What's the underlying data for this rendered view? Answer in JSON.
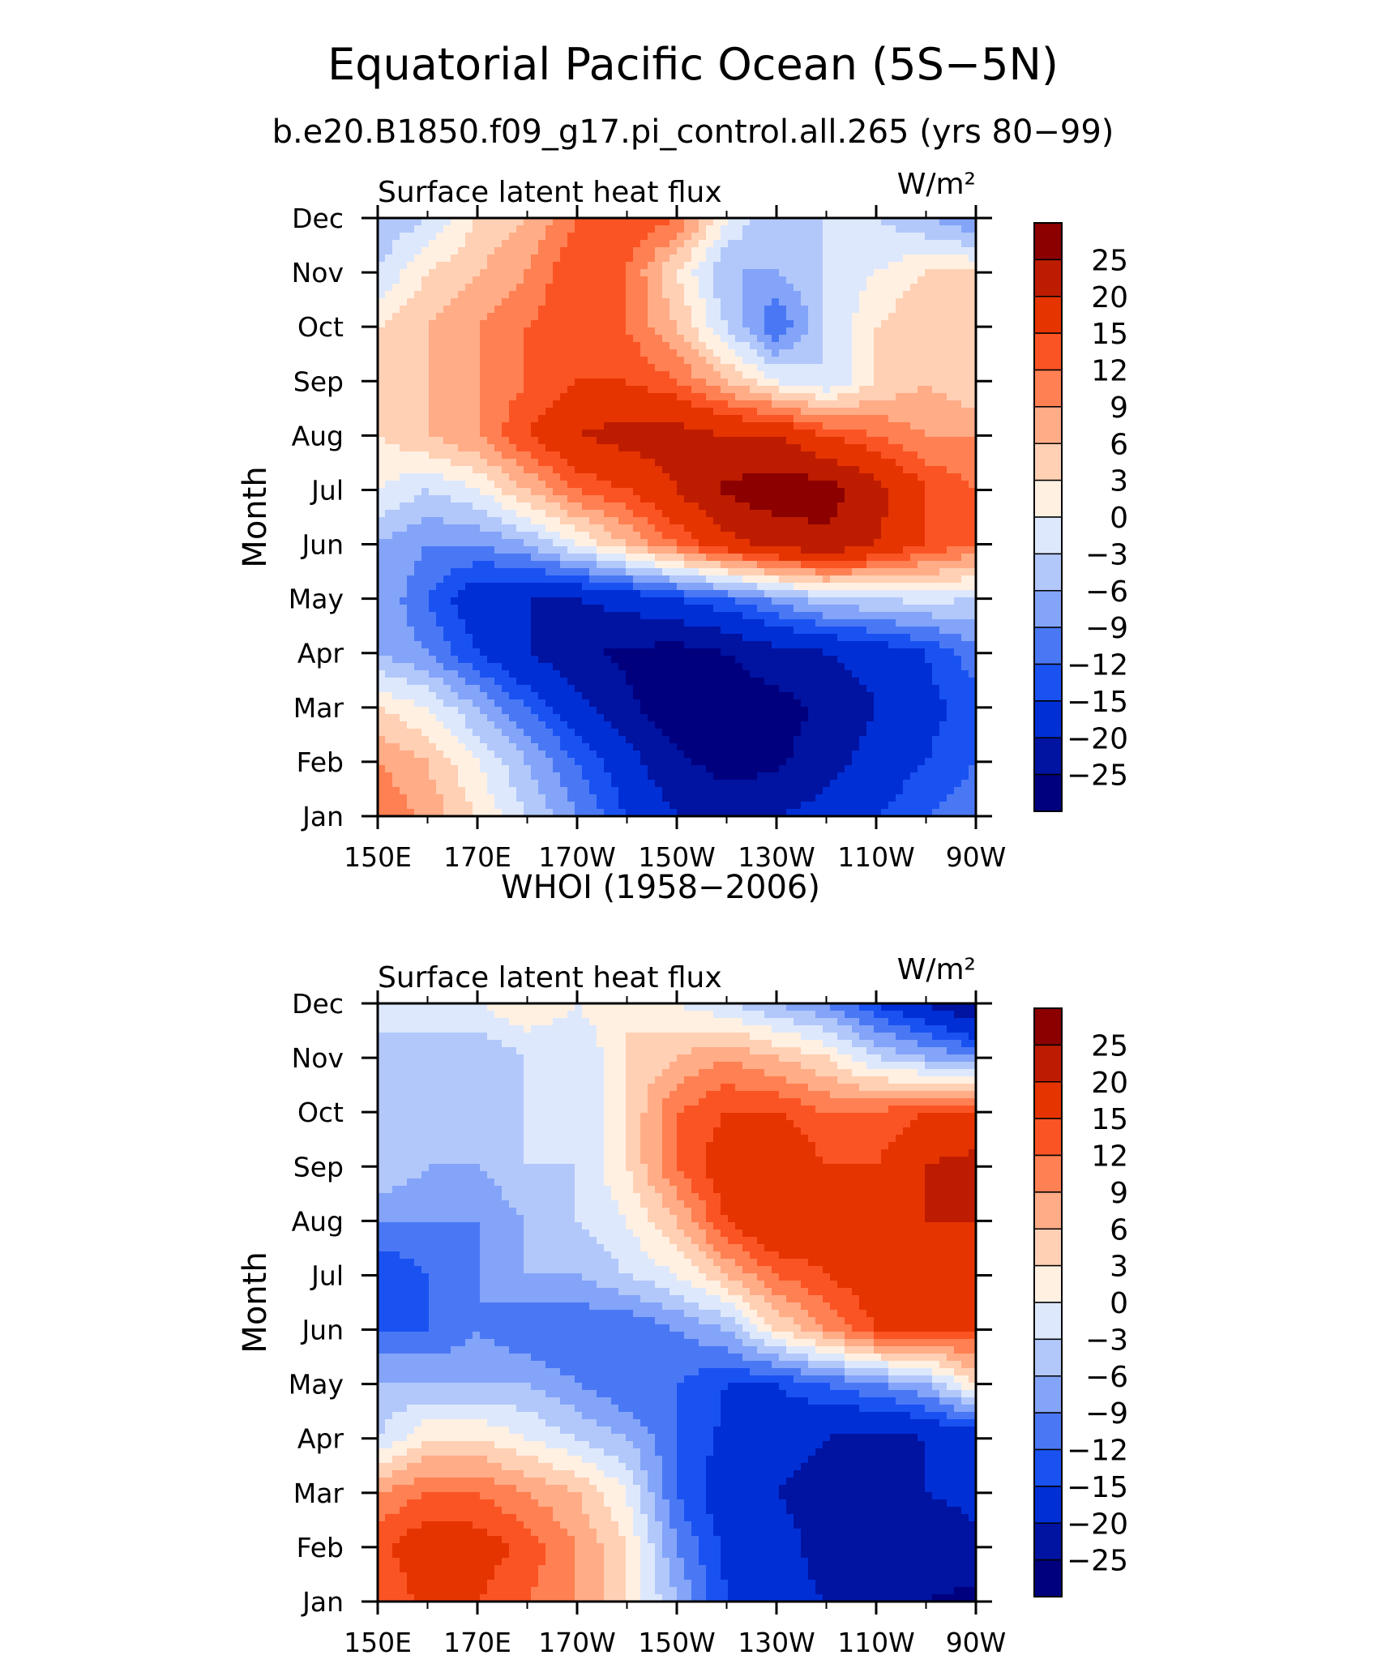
{
  "title": "Equatorial Pacific Ocean (5S−5N)",
  "subtitle": "b.e20.B1850.f09_g17.pi_control.all.265 (yrs 80−99)",
  "chart_data": [
    {
      "type": "heatmap",
      "title": "",
      "left_string": "Surface latent heat flux",
      "right_string": "W/m²",
      "ylabel": "Month",
      "x_ticks": [
        "150E",
        "170E",
        "170W",
        "150W",
        "130W",
        "110W",
        "90W"
      ],
      "y_ticks": [
        "Jan",
        "Feb",
        "Mar",
        "Apr",
        "May",
        "Jun",
        "Jul",
        "Aug",
        "Sep",
        "Oct",
        "Nov",
        "Dec"
      ],
      "x_lon": [
        150,
        160,
        170,
        180,
        190,
        200,
        210,
        220,
        230,
        240,
        250,
        260,
        270
      ],
      "y_month": [
        1,
        2,
        3,
        4,
        5,
        6,
        7,
        8,
        9,
        10,
        11,
        12
      ],
      "values": [
        [
          12,
          8,
          3,
          -3,
          -9,
          -15,
          -20,
          -22,
          -20,
          -18,
          -15,
          -12,
          -10
        ],
        [
          9,
          6,
          0,
          -6,
          -12,
          -18,
          -24,
          -27,
          -26,
          -22,
          -18,
          -15,
          -12
        ],
        [
          3,
          0,
          -6,
          -12,
          -18,
          -24,
          -28,
          -28,
          -27,
          -24,
          -20,
          -16,
          -14
        ],
        [
          -6,
          -9,
          -15,
          -20,
          -24,
          -26,
          -27,
          -25,
          -22,
          -20,
          -18,
          -15,
          -10
        ],
        [
          -6,
          -12,
          -18,
          -20,
          -20,
          -18,
          -15,
          -12,
          -8,
          -4,
          -3,
          -2,
          -3
        ],
        [
          -6,
          -9,
          -9,
          -6,
          0,
          6,
          12,
          18,
          22,
          24,
          20,
          15,
          12
        ],
        [
          0,
          -3,
          0,
          6,
          12,
          15,
          20,
          26,
          28,
          27,
          22,
          15,
          12
        ],
        [
          3,
          6,
          9,
          15,
          20,
          22,
          22,
          20,
          20,
          15,
          12,
          9,
          9
        ],
        [
          6,
          6,
          9,
          12,
          15,
          15,
          12,
          6,
          0,
          -3,
          3,
          6,
          3
        ],
        [
          3,
          6,
          9,
          12,
          15,
          12,
          6,
          -3,
          -12,
          -3,
          3,
          6,
          6
        ],
        [
          -3,
          3,
          6,
          9,
          15,
          12,
          3,
          -6,
          -6,
          -3,
          0,
          3,
          3
        ],
        [
          -6,
          -3,
          3,
          6,
          12,
          15,
          12,
          0,
          -6,
          -3,
          -3,
          -6,
          -9
        ]
      ],
      "contour_levels": [
        -25,
        -20,
        -15,
        -12,
        -9,
        -6,
        -3,
        0,
        3,
        6,
        9,
        12,
        15,
        20,
        25
      ],
      "colors": [
        "#00007f",
        "#0013a1",
        "#002fd6",
        "#1a52f2",
        "#4a78f5",
        "#83a4f8",
        "#b2c8fb",
        "#dde8fd",
        "#fff0e2",
        "#ffd0b4",
        "#ffac87",
        "#ff8052",
        "#fb5424",
        "#e53400",
        "#bd1c00",
        "#8c0000"
      ],
      "colorbar_labels": [
        "25",
        "20",
        "15",
        "12",
        "9",
        "6",
        "3",
        "0",
        "−3",
        "−6",
        "−9",
        "−12",
        "−15",
        "−20",
        "−25"
      ]
    },
    {
      "type": "heatmap",
      "title": "WHOI (1958−2006)",
      "left_string": "Surface latent heat flux",
      "right_string": "W/m²",
      "ylabel": "Month",
      "x_ticks": [
        "150E",
        "170E",
        "170W",
        "150W",
        "130W",
        "110W",
        "90W"
      ],
      "y_ticks": [
        "Jan",
        "Feb",
        "Mar",
        "Apr",
        "May",
        "Jun",
        "Jul",
        "Aug",
        "Sep",
        "Oct",
        "Nov",
        "Dec"
      ],
      "x_lon": [
        150,
        160,
        170,
        180,
        190,
        200,
        210,
        220,
        230,
        240,
        250,
        260,
        270
      ],
      "y_month": [
        1,
        2,
        3,
        4,
        5,
        6,
        7,
        8,
        9,
        10,
        11,
        12
      ],
      "values": [
        [
          12,
          16,
          15,
          12,
          9,
          3,
          -6,
          -15,
          -18,
          -20,
          -22,
          -25,
          -26
        ],
        [
          14,
          18,
          17,
          14,
          9,
          3,
          -9,
          -16,
          -18,
          -22,
          -24,
          -24,
          -22
        ],
        [
          9,
          12,
          12,
          9,
          6,
          0,
          -12,
          -18,
          -20,
          -22,
          -20,
          -20,
          -18
        ],
        [
          -3,
          3,
          3,
          0,
          -3,
          -6,
          -12,
          -16,
          -18,
          -20,
          -22,
          -20,
          -18
        ],
        [
          -6,
          -6,
          -6,
          -6,
          -9,
          -12,
          -12,
          -15,
          -15,
          -12,
          -9,
          -6,
          3
        ],
        [
          -12,
          -12,
          -9,
          -12,
          -12,
          -12,
          -9,
          -6,
          3,
          9,
          15,
          15,
          15
        ],
        [
          -15,
          -12,
          -9,
          -6,
          -6,
          -3,
          0,
          6,
          12,
          15,
          18,
          18,
          20
        ],
        [
          -9,
          -9,
          -9,
          -6,
          -3,
          0,
          6,
          15,
          20,
          18,
          15,
          20,
          20
        ],
        [
          -3,
          -6,
          -6,
          -3,
          -3,
          3,
          12,
          18,
          20,
          15,
          15,
          20,
          22
        ],
        [
          -3,
          -3,
          -6,
          -3,
          -3,
          3,
          12,
          15,
          15,
          12,
          12,
          15,
          15
        ],
        [
          -3,
          -6,
          -6,
          -3,
          -3,
          3,
          6,
          9,
          6,
          3,
          -3,
          -6,
          -9
        ],
        [
          -3,
          0,
          0,
          3,
          0,
          3,
          0,
          -3,
          -6,
          -9,
          -15,
          -20,
          -25
        ]
      ],
      "contour_levels": [
        -25,
        -20,
        -15,
        -12,
        -9,
        -6,
        -3,
        0,
        3,
        6,
        9,
        12,
        15,
        20,
        25
      ],
      "colors": [
        "#00007f",
        "#0013a1",
        "#002fd6",
        "#1a52f2",
        "#4a78f5",
        "#83a4f8",
        "#b2c8fb",
        "#dde8fd",
        "#fff0e2",
        "#ffd0b4",
        "#ffac87",
        "#ff8052",
        "#fb5424",
        "#e53400",
        "#bd1c00",
        "#8c0000"
      ],
      "colorbar_labels": [
        "25",
        "20",
        "15",
        "12",
        "9",
        "6",
        "3",
        "0",
        "−3",
        "−6",
        "−9",
        "−12",
        "−15",
        "−20",
        "−25"
      ]
    }
  ]
}
